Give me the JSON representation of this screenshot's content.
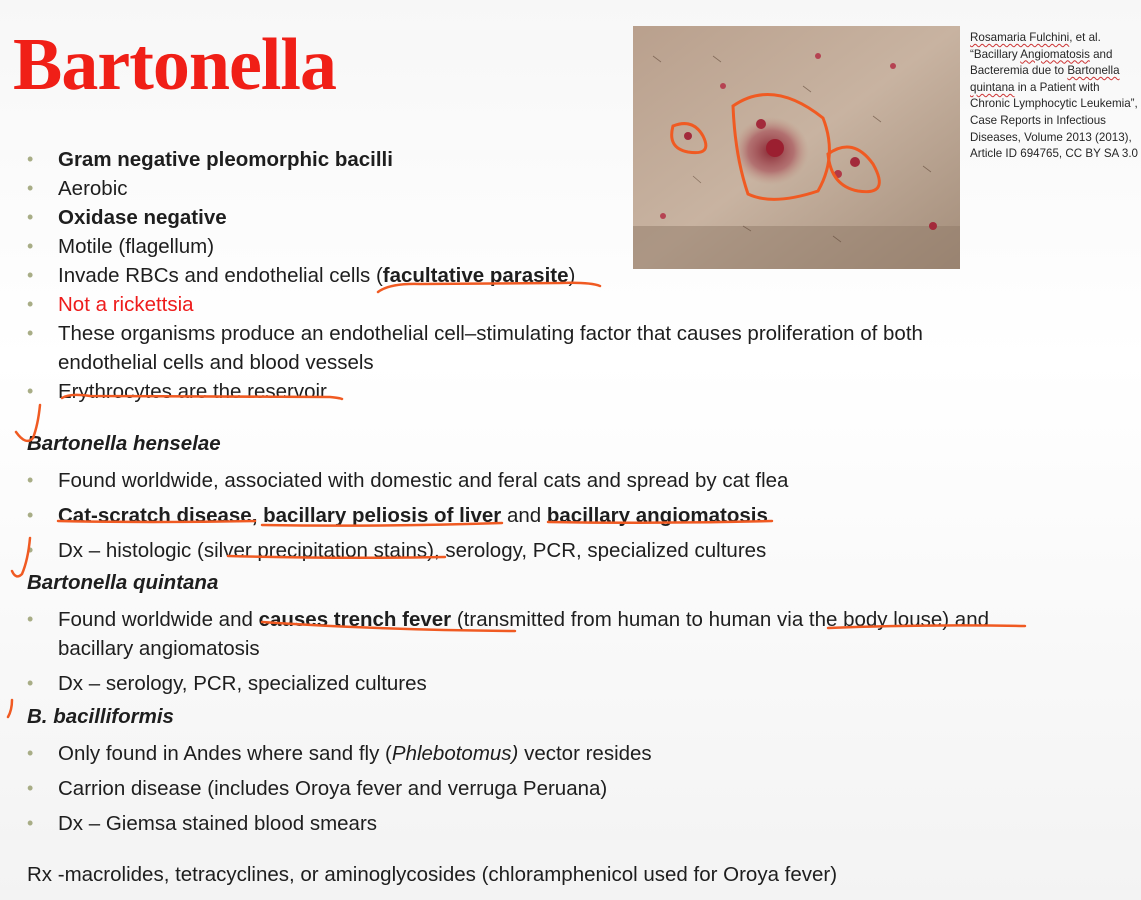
{
  "title": "Bartonella",
  "citation": {
    "author": "Rosamaria Fulchini",
    "etal": ", et al.",
    "text_open": "“Bacillary ",
    "word1": "Angiomatosis",
    "text_mid1": " and Bacteremia due to ",
    "word2": "Bartonella quintana",
    "text_rest": " in a Patient with Chronic Lymphocytic Leukemia”, Case Reports in Infectious Diseases, Volume 2013 (2013), Article ID 694765, CC BY SA 3.0"
  },
  "general": [
    {
      "text": "Gram negative pleomorphic bacilli"
    },
    {
      "text": "Aerobic"
    },
    {
      "text": "Oxidase negative"
    },
    {
      "text": "Motile (flagellum)"
    },
    {
      "pre": "Invade RBCs and endothelial cells (",
      "bold": "facultative parasite",
      "post": ")"
    },
    {
      "text": "Not a rickettsia"
    },
    {
      "text": "These organisms produce an endothelial cell–stimulating factor that causes proliferation of both endothelial cells and blood vessels"
    },
    {
      "text": "Erythrocytes are the reservoir"
    }
  ],
  "henselae": {
    "heading": "Bartonella henselae",
    "item1": "Found worldwide, associated with domestic and feral cats and spread by cat flea",
    "item2": {
      "b1": "Cat-scratch disease",
      "b1sep": ", ",
      "b2": "bacillary peliosis of liver",
      "mid": " and ",
      "b3": "bacillary angiomatosis"
    },
    "item3": "Dx – histologic (silver precipitation stains), serology, PCR, specialized cultures"
  },
  "quintana": {
    "heading": "Bartonella quintana",
    "item1": {
      "pre": "Found worldwide and ",
      "bold": "causes trench fever",
      "post": " (transmitted from human to human via the body louse) and bacillary angiomatosis"
    },
    "item2": "Dx – serology, PCR, specialized cultures"
  },
  "bacilliformis": {
    "heading": "B. bacilliformis",
    "item1": {
      "pre": "Only found in Andes where sand fly (",
      "italic": "Phlebotomus)",
      "post": " vector resides"
    },
    "item2": "Carrion disease (includes Oroya fever and verruga Peruana)",
    "item3": "Dx – Giemsa stained blood smears"
  },
  "rx": "Rx -macrolides, tetracyclines, or aminoglycosides (chloramphenicol used for Oroya fever)"
}
